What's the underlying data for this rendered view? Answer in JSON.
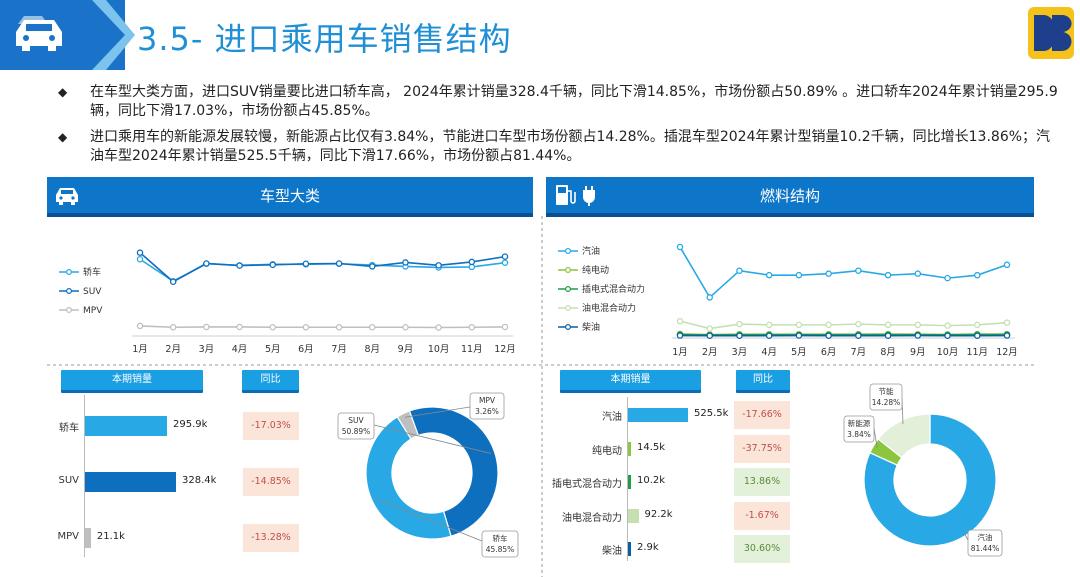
{
  "header": {
    "title": "3.5- 进口乘用车销售结构",
    "logo_text": "DB"
  },
  "bullets": [
    "在车型大类方面，进口SUV销量要比进口轿车高， 2024年累计销量328.4千辆，同比下滑14.85%，市场份额占50.89% 。进口轿车2024年累计销量295.9辆，同比下滑17.03%，市场份额占45.85%。",
    "进口乘用车的新能源发展较慢，新能源占比仅有3.84%，节能进口车型市场份额占14.28%。插混车型2024年累计型销量10.2千辆，同比增长13.86%；汽油车型2024年累计销量525.5千辆，同比下滑17.66%，市场份额占81.44%。"
  ],
  "colors": {
    "accent": "#1b9fe3",
    "dark_blue": "#0e76c9",
    "negative_bg": "#fbe5d8",
    "positive_bg": "#e3f1da"
  },
  "panels": {
    "left": {
      "title": "车型大类",
      "icon": "car-icon",
      "sales_header": "本期销量",
      "yoy_header": "同比"
    },
    "right": {
      "title": "燃料结构",
      "icon": "fuel-icon",
      "sales_header": "本期销量",
      "yoy_header": "同比"
    }
  },
  "chart_data": [
    {
      "id": "vehicle-type-trend",
      "type": "line",
      "x": [
        "1月",
        "2月",
        "3月",
        "4月",
        "5月",
        "6月",
        "7月",
        "8月",
        "9月",
        "10月",
        "11月",
        "12月"
      ],
      "series": [
        {
          "name": "轿车",
          "color": "#29a8e6",
          "values": [
            27.5,
            19.2,
            25.8,
            25.2,
            25.6,
            25.6,
            25.8,
            25.3,
            24.8,
            24.4,
            24.6,
            26.2
          ]
        },
        {
          "name": "SUV",
          "color": "#0e6fbf",
          "values": [
            30.0,
            19.0,
            25.9,
            25.1,
            25.4,
            25.8,
            25.9,
            24.8,
            26.3,
            25.2,
            26.5,
            28.5
          ]
        },
        {
          "name": "MPV",
          "color": "#bfbfbf",
          "values": [
            2.3,
            1.8,
            1.9,
            1.9,
            1.8,
            1.8,
            1.8,
            1.8,
            1.8,
            1.7,
            1.8,
            1.9
          ]
        }
      ],
      "legend": "left"
    },
    {
      "id": "fuel-type-trend",
      "type": "line",
      "x": [
        "1月",
        "2月",
        "3月",
        "4月",
        "5月",
        "6月",
        "7月",
        "8月",
        "9月",
        "10月",
        "11月",
        "12月"
      ],
      "series": [
        {
          "name": "汽油",
          "color": "#29a8e6",
          "values": [
            60.0,
            26.0,
            44.0,
            41.0,
            41.0,
            42.0,
            44.0,
            41.0,
            42.0,
            39.0,
            41.0,
            48.0
          ]
        },
        {
          "name": "纯电动",
          "color": "#8cc63f",
          "values": [
            1.4,
            1.0,
            1.2,
            1.2,
            1.2,
            1.2,
            1.2,
            1.3,
            1.2,
            1.1,
            1.3,
            1.3
          ]
        },
        {
          "name": "插电式混合动力",
          "color": "#1f9e4a",
          "values": [
            0.9,
            0.7,
            0.8,
            0.8,
            0.8,
            0.8,
            0.9,
            0.9,
            0.8,
            0.8,
            0.9,
            0.9
          ]
        },
        {
          "name": "油电混合动力",
          "color": "#c5dfb2",
          "values": [
            10.0,
            5.0,
            8.0,
            7.5,
            7.5,
            7.5,
            8.0,
            7.5,
            7.5,
            7.0,
            7.5,
            9.0
          ]
        },
        {
          "name": "柴油",
          "color": "#0b5fa3",
          "values": [
            0.3,
            0.2,
            0.2,
            0.2,
            0.3,
            0.2,
            0.2,
            0.2,
            0.3,
            0.2,
            0.2,
            0.3
          ]
        }
      ],
      "legend": "left"
    },
    {
      "id": "vehicle-type-sales",
      "type": "bar",
      "categories": [
        "轿车",
        "SUV",
        "MPV"
      ],
      "values": [
        295.9,
        328.4,
        21.1
      ],
      "value_labels": [
        "295.9k",
        "328.4k",
        "21.1k"
      ],
      "colors": [
        "#29a8e6",
        "#0e6fbf",
        "#bfbfbf"
      ],
      "yoy": [
        "-17.03%",
        "-14.85%",
        "-13.28%"
      ]
    },
    {
      "id": "fuel-type-sales",
      "type": "bar",
      "categories": [
        "汽油",
        "纯电动",
        "插电式混合动力",
        "油电混合动力",
        "柴油"
      ],
      "values": [
        525.5,
        14.5,
        10.2,
        92.2,
        2.9
      ],
      "value_labels": [
        "525.5k",
        "14.5k",
        "10.2k",
        "92.2k",
        "2.9k"
      ],
      "colors": [
        "#29a8e6",
        "#8cc63f",
        "#1f9e4a",
        "#c5dfb2",
        "#0b5fa3"
      ],
      "yoy": [
        "-17.66%",
        "-37.75%",
        "13.86%",
        "-1.67%",
        "30.60%"
      ]
    },
    {
      "id": "vehicle-type-share",
      "type": "pie",
      "donut": true,
      "slices": [
        {
          "name": "SUV",
          "value": 50.89,
          "label": "50.89%",
          "color": "#0e6fbf"
        },
        {
          "name": "轿车",
          "value": 45.85,
          "label": "45.85%",
          "color": "#29a8e6"
        },
        {
          "name": "MPV",
          "value": 3.26,
          "label": "3.26%",
          "color": "#bfbfbf"
        }
      ]
    },
    {
      "id": "fuel-type-share",
      "type": "pie",
      "donut": true,
      "slices": [
        {
          "name": "汽油",
          "value": 81.44,
          "label": "81.44%",
          "color": "#29a8e6"
        },
        {
          "name": "新能源",
          "value": 3.84,
          "label": "3.84%",
          "color": "#8cc63f"
        },
        {
          "name": "节能",
          "value": 14.28,
          "label": "14.28%",
          "color": "#e2efd9"
        }
      ]
    }
  ]
}
